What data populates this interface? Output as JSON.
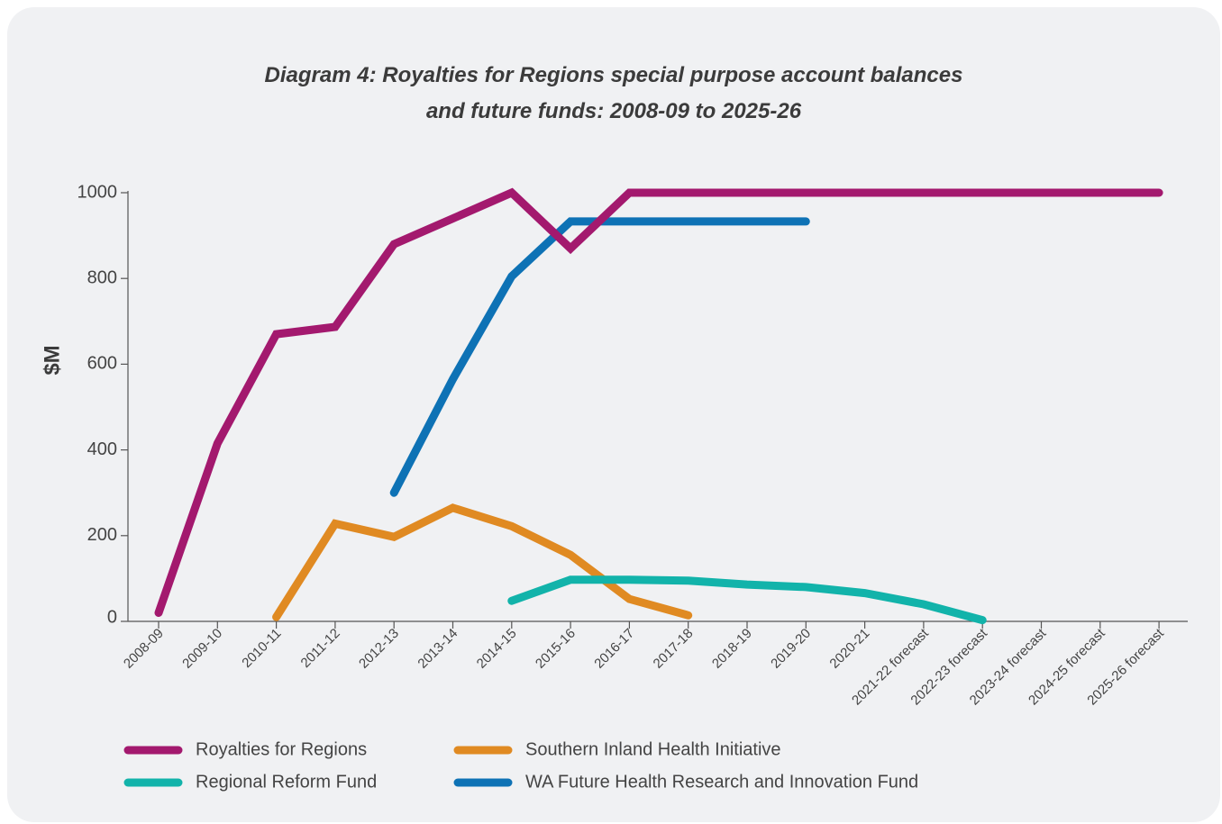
{
  "chart_data": {
    "type": "line",
    "title_line1": "Diagram 4: Royalties for Regions special purpose account balances",
    "title_line2": "and future funds: 2008-09 to 2025-26",
    "ylabel": "$M",
    "xlabel": "",
    "ylim": [
      0,
      1000
    ],
    "yticks": [
      0,
      200,
      400,
      600,
      800,
      1000
    ],
    "grid": false,
    "legend_position": "bottom",
    "categories": [
      "2008-09",
      "2009-10",
      "2010-11",
      "2011-12",
      "2012-13",
      "2013-14",
      "2014-15",
      "2015-16",
      "2016-17",
      "2017-18",
      "2018-19",
      "2019-20",
      "2020-21",
      "2021-22 forecast",
      "2022-23 forecast",
      "2023-24 forecast",
      "2024-25 forecast",
      "2025-26 forecast"
    ],
    "series": [
      {
        "name": "Royalties for Regions",
        "color": "#a3196e",
        "values": [
          20,
          415,
          670,
          687,
          880,
          940,
          1000,
          870,
          1000,
          1000,
          1000,
          1000,
          1000,
          1000,
          1000,
          1000,
          1000,
          1000
        ]
      },
      {
        "name": "Southern Inland Health Initiative",
        "color": "#e08a22",
        "values": [
          null,
          null,
          10,
          228,
          197,
          265,
          222,
          155,
          52,
          14,
          null,
          null,
          null,
          null,
          null,
          null,
          null,
          null
        ]
      },
      {
        "name": "Regional Reform Fund",
        "color": "#12b3aa",
        "values": [
          null,
          null,
          null,
          null,
          null,
          null,
          48,
          97,
          97,
          95,
          86,
          80,
          66,
          40,
          3,
          null,
          null,
          null
        ]
      },
      {
        "name": "WA Future Health Research and Innovation Fund",
        "color": "#0e72b5",
        "values": [
          null,
          null,
          null,
          null,
          300,
          565,
          805,
          933,
          933,
          933,
          933,
          933,
          null,
          null,
          null,
          null,
          null,
          null
        ]
      }
    ]
  }
}
